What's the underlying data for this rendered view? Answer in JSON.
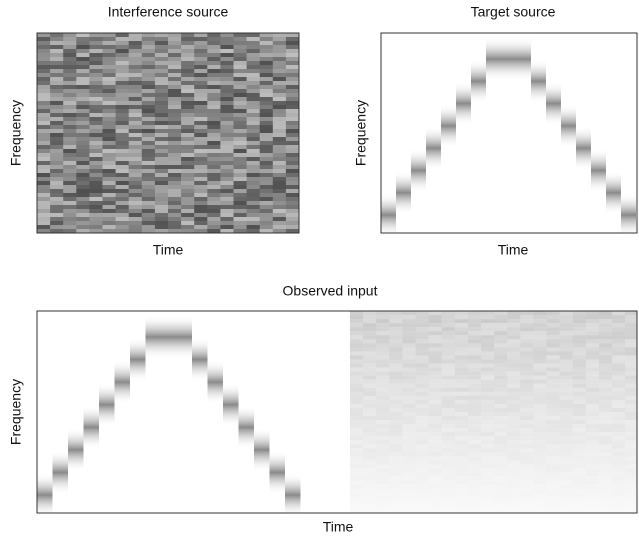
{
  "panels": [
    {
      "title": "Interference source",
      "y_label": "Frequency",
      "x_label": "Time"
    },
    {
      "title": "Target source",
      "y_label": "Frequency",
      "x_label": "Time"
    },
    {
      "title": "Observed input",
      "y_label": "Frequency",
      "x_label": "Time"
    }
  ]
}
